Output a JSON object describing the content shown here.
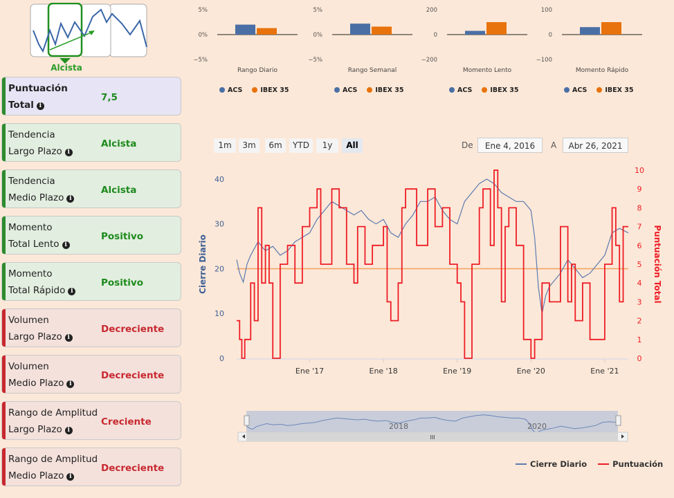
{
  "trend_icon": {
    "label": "Alcista",
    "icon": "trend-up-icon"
  },
  "metrics": [
    {
      "line1": "Puntuación",
      "line2": "Total",
      "value": "7,5",
      "style": "b"
    },
    {
      "line1": "Tendencia",
      "line2": "Largo Plazo",
      "value": "Alcista",
      "style": "g"
    },
    {
      "line1": "Tendencia",
      "line2": "Medio Plazo",
      "value": "Alcista",
      "style": "g"
    },
    {
      "line1": "Momento",
      "line2": "Total Lento",
      "value": "Positivo",
      "style": "g"
    },
    {
      "line1": "Momento",
      "line2": "Total Rápido",
      "value": "Positivo",
      "style": "g"
    },
    {
      "line1": "Volumen",
      "line2": "Largo Plazo",
      "value": "Decreciente",
      "style": "r"
    },
    {
      "line1": "Volumen",
      "line2": "Medio Plazo",
      "value": "Decreciente",
      "style": "r"
    },
    {
      "line1": "Rango de Amplitud",
      "line2": "Largo Plazo",
      "value": "Creciente",
      "style": "r"
    },
    {
      "line1": "Rango de Amplitud",
      "line2": "Medio Plazo",
      "value": "Decreciente",
      "style": "r"
    }
  ],
  "colors": {
    "acs": "#4a6fa5",
    "ibex": "#e8720c",
    "close": "#5b7bb0",
    "score": "#ee1c25",
    "ref": "#f0a060"
  },
  "chart_data": [
    {
      "type": "bar",
      "xlabel": "Rango Diario",
      "yticks": [
        "5%",
        "0%",
        "−5%"
      ],
      "ylim": [
        -5,
        5
      ],
      "series": [
        {
          "name": "ACS",
          "values": [
            2.0
          ]
        },
        {
          "name": "IBEX 35",
          "values": [
            1.3
          ]
        }
      ]
    },
    {
      "type": "bar",
      "xlabel": "Rango Semanal",
      "yticks": [
        "5%",
        "0%",
        "−5%"
      ],
      "ylim": [
        -5,
        5
      ],
      "series": [
        {
          "name": "ACS",
          "values": [
            2.2
          ]
        },
        {
          "name": "IBEX 35",
          "values": [
            1.6
          ]
        }
      ]
    },
    {
      "type": "bar",
      "xlabel": "Momento Lento",
      "yticks": [
        "200",
        "0",
        "−200"
      ],
      "ylim": [
        -200,
        200
      ],
      "series": [
        {
          "name": "ACS",
          "values": [
            30
          ]
        },
        {
          "name": "IBEX 35",
          "values": [
            100
          ]
        }
      ]
    },
    {
      "type": "bar",
      "xlabel": "Momento Rápido",
      "yticks": [
        "100",
        "0",
        "−100"
      ],
      "ylim": [
        -100,
        100
      ],
      "series": [
        {
          "name": "ACS",
          "values": [
            30
          ]
        },
        {
          "name": "IBEX 35",
          "values": [
            50
          ]
        }
      ]
    },
    {
      "type": "line",
      "ylabel": "Cierre Diario",
      "y2label": "Puntuación Total",
      "ylim": [
        0,
        42
      ],
      "y2lim": [
        0,
        10
      ],
      "yticks": [
        "0",
        "10",
        "20",
        "30",
        "40"
      ],
      "y2ticks": [
        "0",
        "1",
        "2",
        "3",
        "4",
        "5",
        "6",
        "7",
        "8",
        "9",
        "10"
      ],
      "xticks": [
        "Ene '17",
        "Ene '18",
        "Ene '19",
        "Ene '20",
        "Ene '21"
      ],
      "xtick_years": [
        2017,
        2018,
        2019,
        2020,
        2021
      ],
      "xlim": [
        2016.01,
        2021.32
      ],
      "reference_line": 20,
      "series": [
        {
          "name": "Cierre Diario",
          "axis": "left",
          "x": [
            2016.01,
            2016.05,
            2016.1,
            2016.15,
            2016.2,
            2016.3,
            2016.4,
            2016.5,
            2016.6,
            2016.7,
            2016.8,
            2016.9,
            2017.0,
            2017.1,
            2017.2,
            2017.3,
            2017.4,
            2017.5,
            2017.6,
            2017.7,
            2017.8,
            2017.9,
            2018.0,
            2018.1,
            2018.2,
            2018.3,
            2018.4,
            2018.5,
            2018.6,
            2018.7,
            2018.8,
            2018.9,
            2019.0,
            2019.1,
            2019.2,
            2019.3,
            2019.4,
            2019.5,
            2019.6,
            2019.7,
            2019.8,
            2019.9,
            2020.0,
            2020.05,
            2020.1,
            2020.15,
            2020.2,
            2020.25,
            2020.3,
            2020.4,
            2020.5,
            2020.6,
            2020.7,
            2020.8,
            2020.9,
            2021.0,
            2021.1,
            2021.2,
            2021.32
          ],
          "y": [
            22,
            19,
            17,
            21,
            23,
            26,
            24,
            25,
            23,
            24,
            26,
            27,
            28,
            31,
            33,
            35,
            34,
            33,
            32,
            33,
            31,
            30,
            31,
            28,
            27,
            30,
            32,
            35,
            35,
            36,
            33,
            31,
            30,
            35,
            37,
            39,
            40,
            39,
            37,
            36,
            35,
            35,
            33,
            27,
            16,
            10,
            14,
            16,
            17,
            19,
            22,
            20,
            18,
            19,
            21,
            23,
            28,
            29,
            28
          ]
        },
        {
          "name": "Puntuación",
          "axis": "right",
          "x": [
            2016.01,
            2016.05,
            2016.08,
            2016.12,
            2016.2,
            2016.25,
            2016.3,
            2016.35,
            2016.4,
            2016.45,
            2016.5,
            2016.6,
            2016.7,
            2016.8,
            2016.9,
            2017.0,
            2017.1,
            2017.15,
            2017.3,
            2017.4,
            2017.5,
            2017.6,
            2017.65,
            2017.75,
            2017.85,
            2018.0,
            2018.05,
            2018.1,
            2018.2,
            2018.25,
            2018.3,
            2018.45,
            2018.6,
            2018.7,
            2018.8,
            2018.9,
            2019.0,
            2019.05,
            2019.1,
            2019.2,
            2019.3,
            2019.35,
            2019.45,
            2019.5,
            2019.55,
            2019.6,
            2019.65,
            2019.7,
            2019.8,
            2019.9,
            2020.0,
            2020.05,
            2020.15,
            2020.25,
            2020.4,
            2020.5,
            2020.55,
            2020.6,
            2020.7,
            2020.8,
            2020.9,
            2021.0,
            2021.1,
            2021.15,
            2021.2,
            2021.25,
            2021.32
          ],
          "y": [
            2,
            1,
            0,
            1,
            4,
            2,
            8,
            4,
            6,
            4,
            0,
            5,
            6,
            4,
            7,
            8,
            9,
            5,
            9,
            8,
            5,
            4,
            7,
            5,
            6,
            7,
            3,
            2,
            4,
            8,
            9,
            6,
            9,
            7,
            8,
            5,
            4,
            3,
            0,
            5,
            8,
            9,
            6,
            10,
            8,
            3,
            7,
            8,
            6,
            1,
            0,
            1,
            4,
            3,
            7,
            3,
            5,
            2,
            4,
            1,
            1,
            5,
            8,
            6,
            3,
            7,
            7
          ]
        }
      ]
    }
  ],
  "range_buttons": [
    "1m",
    "3m",
    "6m",
    "YTD",
    "1y",
    "All"
  ],
  "range_selected": "All",
  "date_from_label": "De",
  "date_from": "Ene 4, 2016",
  "date_to_label": "A",
  "date_to": "Abr 26, 2021",
  "navigator": {
    "labels": [
      "2018",
      "2020"
    ],
    "scroll_glyph": "III"
  },
  "legend_main": [
    "Cierre Diario",
    "Puntuación"
  ]
}
